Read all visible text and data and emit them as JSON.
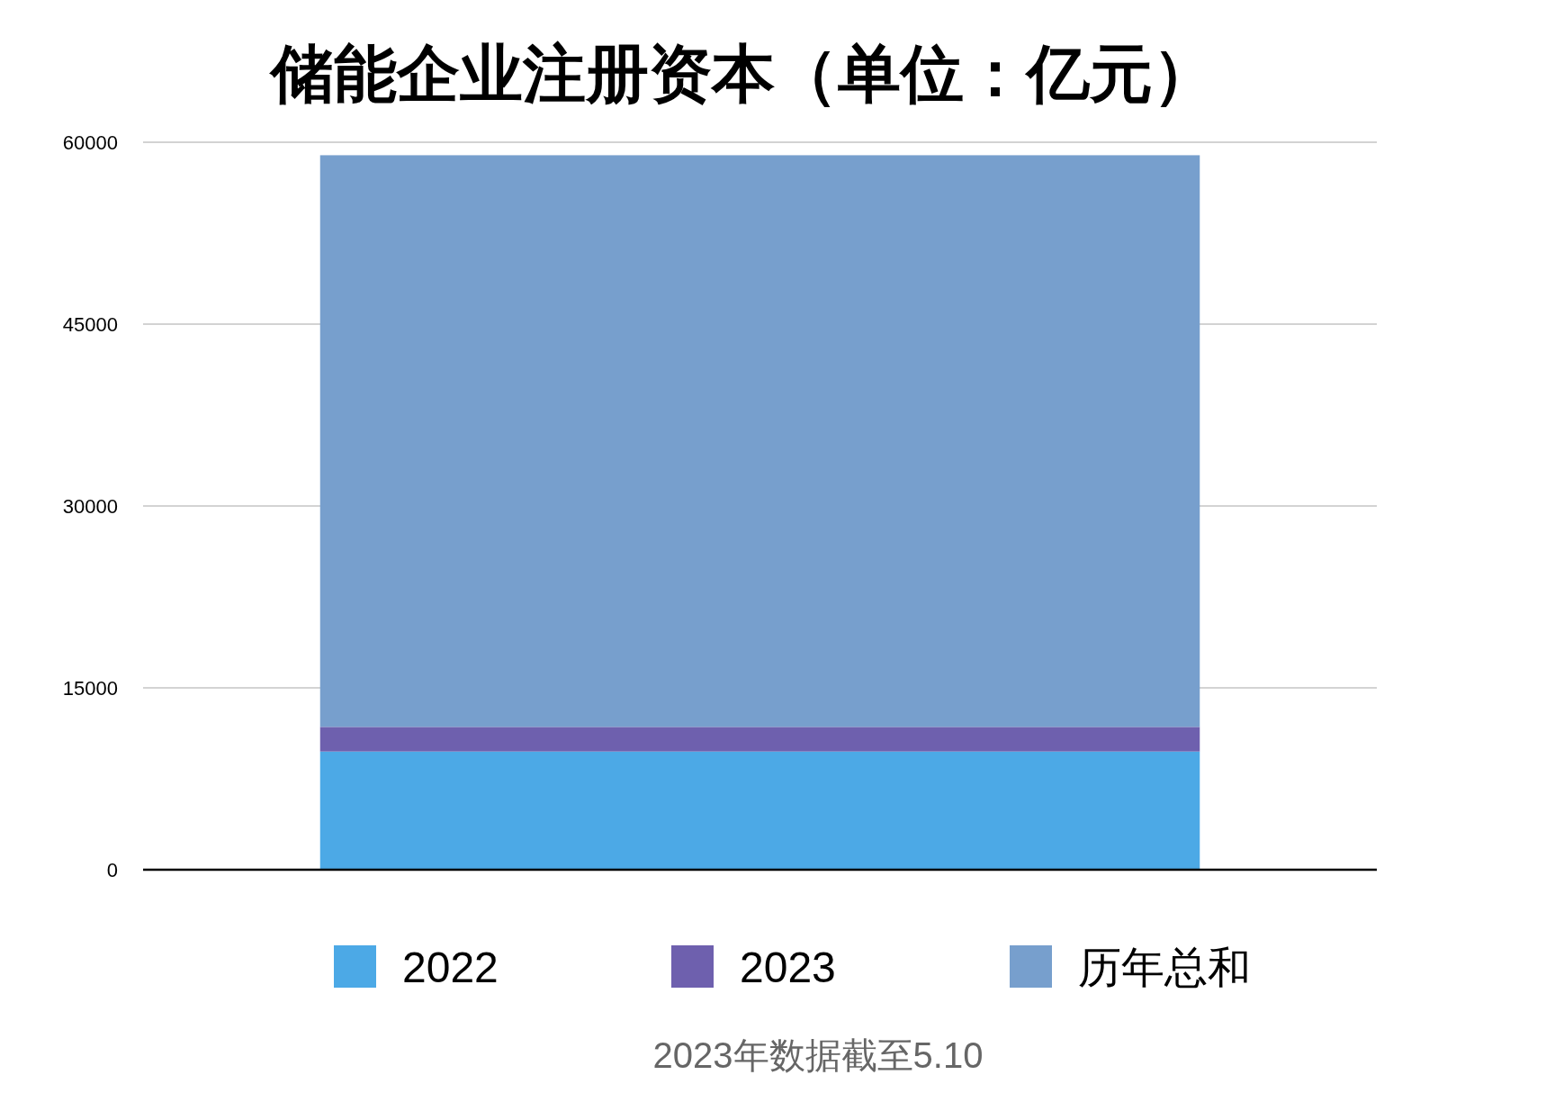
{
  "chart_data": {
    "type": "bar",
    "title": "储能企业注册资本（单位：亿元）",
    "categories": [
      null
    ],
    "series": [
      {
        "name": "2022",
        "color": "#4ca9e6",
        "values": [
          9750
        ]
      },
      {
        "name": "2023",
        "color": "#6e60ae",
        "values": [
          2030
        ]
      },
      {
        "name": "历年总和",
        "color": "#779fcd",
        "values": [
          47150
        ]
      }
    ],
    "stacked": true,
    "ylim": [
      0,
      60000
    ],
    "yticks": [
      0,
      15000,
      30000,
      45000,
      60000
    ],
    "grid": "y",
    "legend": "bottom",
    "tick_labels": "y",
    "annotations": [
      "2023年数据截至5.10"
    ]
  }
}
